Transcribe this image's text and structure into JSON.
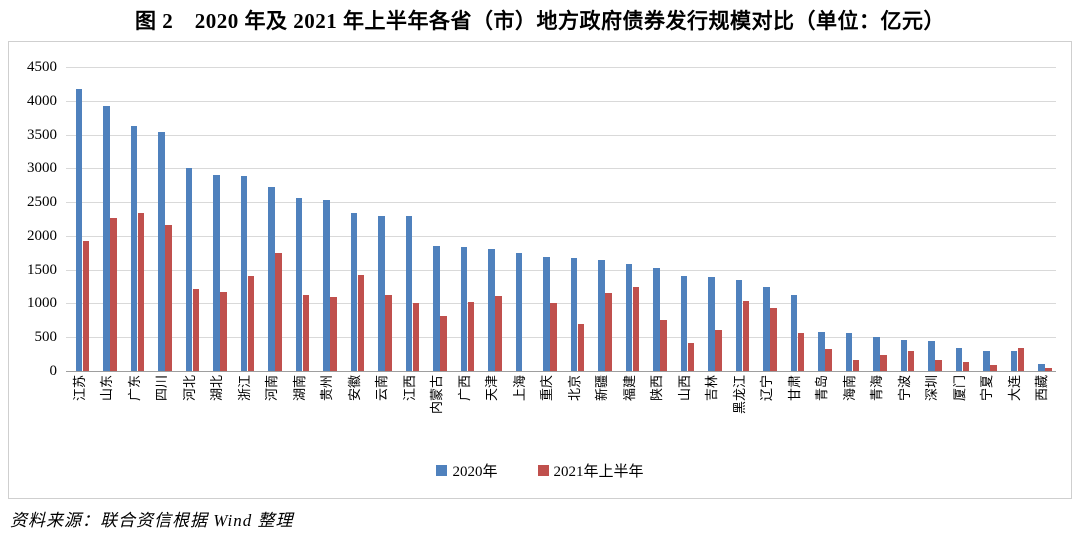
{
  "figure": {
    "title": "图 2　2020 年及 2021 年上半年各省（市）地方政府债券发行规模对比（单位：亿元）",
    "source": "资料来源：联合资信根据 Wind 整理"
  },
  "chart_data": {
    "type": "bar",
    "title": "2020 年及 2021 年上半年各省（市）地方政府债券发行规模对比",
    "unit": "亿元",
    "categories": [
      "江苏",
      "山东",
      "广东",
      "四川",
      "河北",
      "湖北",
      "浙江",
      "河南",
      "湖南",
      "贵州",
      "安徽",
      "云南",
      "江西",
      "内蒙古",
      "广西",
      "天津",
      "上海",
      "重庆",
      "北京",
      "新疆",
      "福建",
      "陕西",
      "山西",
      "吉林",
      "黑龙江",
      "辽宁",
      "甘肃",
      "青岛",
      "海南",
      "青海",
      "宁波",
      "深圳",
      "厦门",
      "宁夏",
      "大连",
      "西藏"
    ],
    "series": [
      {
        "name": "2020年",
        "color": "#4F81BD",
        "values": [
          4180,
          3930,
          3630,
          3540,
          3000,
          2900,
          2890,
          2730,
          2560,
          2530,
          2340,
          2300,
          2290,
          1850,
          1840,
          1800,
          1750,
          1690,
          1670,
          1640,
          1590,
          1530,
          1410,
          1390,
          1350,
          1250,
          1120,
          580,
          560,
          500,
          460,
          450,
          340,
          300,
          300,
          110
        ]
      },
      {
        "name": "2021年上半年",
        "color": "#C0504D",
        "values": [
          1930,
          2270,
          2340,
          2160,
          1220,
          1170,
          1400,
          1750,
          1120,
          1100,
          1420,
          1130,
          1000,
          820,
          1020,
          1110,
          0,
          1000,
          700,
          1160,
          1250,
          760,
          420,
          610,
          1040,
          940,
          560,
          330,
          160,
          230,
          290,
          170,
          130,
          90,
          340,
          40
        ]
      }
    ],
    "xlabel": "",
    "ylabel": "",
    "ylim": [
      0,
      4500
    ],
    "yticks": [
      0,
      500,
      1000,
      1500,
      2000,
      2500,
      3000,
      3500,
      4000,
      4500
    ],
    "grid": true,
    "legend_position": "bottom",
    "x_tick_rotation": -90
  },
  "colors": {
    "series_2020": "#4F81BD",
    "series_2021h1": "#C0504D",
    "gridline": "#d9d9d9",
    "axis": "#9e9e9e",
    "chart_border": "#cfcfcf"
  }
}
